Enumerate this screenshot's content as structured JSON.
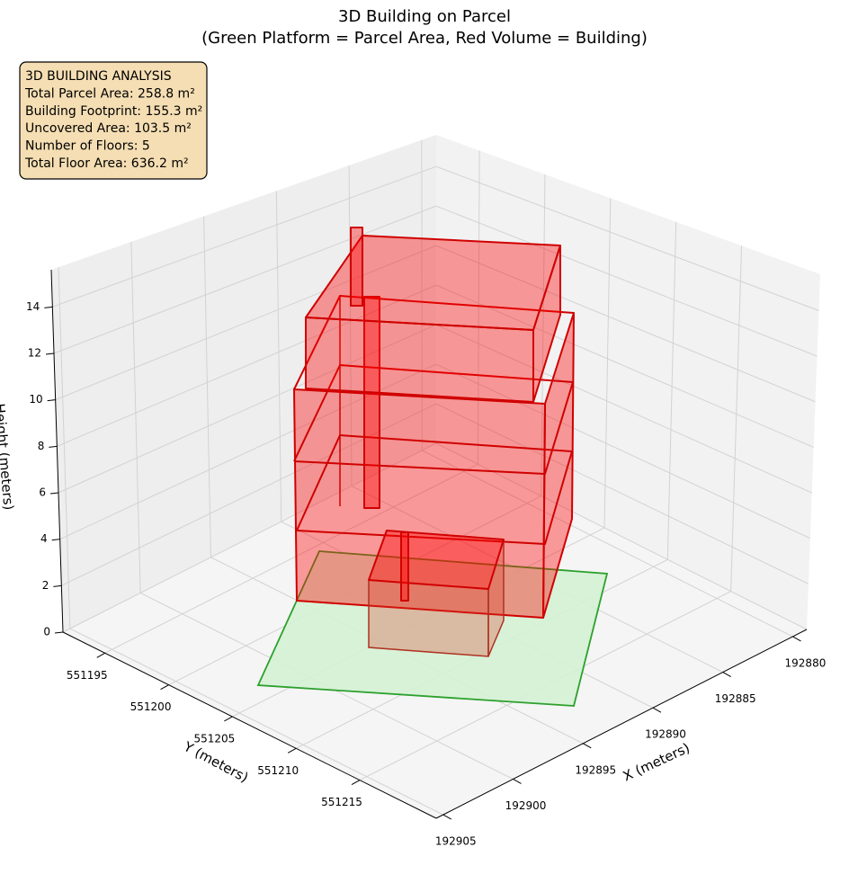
{
  "chart_data": {
    "type": "3d",
    "title": "3D Building on Parcel",
    "subtitle": "(Green Platform = Parcel Area, Red Volume = Building)",
    "xlabel": "X (meters)",
    "ylabel": "Y (meters)",
    "zlabel": "Height (meters)",
    "xlim": [
      192879,
      192905.5
    ],
    "ylim": [
      551191.7,
      551221
    ],
    "zlim": [
      0,
      15.6
    ],
    "xticks": [
      192880,
      192885,
      192890,
      192895,
      192900,
      192905
    ],
    "yticks": [
      551195,
      551200,
      551205,
      551210,
      551215
    ],
    "zticks": [
      0,
      2,
      4,
      6,
      8,
      10,
      12,
      14
    ],
    "grid": true,
    "annotation": [
      "3D BUILDING ANALYSIS",
      "Total Parcel Area: 258.8 m²",
      "Building Footprint: 155.3 m²",
      "Uncovered Area: 103.5 m²",
      "Number of Floors: 5",
      "Total Floor Area: 636.2 m²"
    ]
  }
}
